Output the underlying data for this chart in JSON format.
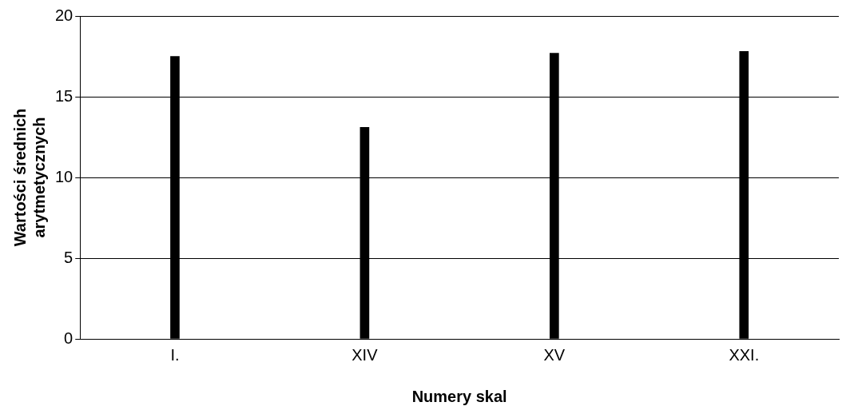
{
  "chart_data": {
    "type": "bar",
    "xlabel": "Numery skal",
    "ylabel": "Wartości średnich arytmetycznych",
    "categories": [
      "I.",
      "XIV",
      "XV",
      "XXI."
    ],
    "values": [
      17.5,
      13.1,
      17.7,
      17.8
    ],
    "color": "#000000",
    "ylim": [
      0,
      20
    ],
    "yticks": [
      0,
      5,
      10,
      15,
      20
    ],
    "grid": "y"
  }
}
